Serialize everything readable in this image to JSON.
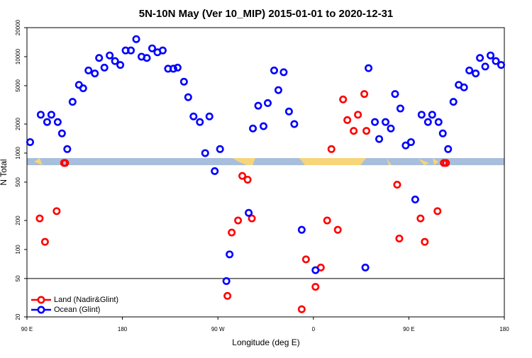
{
  "chart_data": {
    "type": "scatter",
    "title": "5N-10N May (Ver 10_MIP)   2015-01-01 to 2020-12-31",
    "x_label": "Longitude (deg E)",
    "y_label": "N Total",
    "log_y": true,
    "legend": "lower left",
    "hline": 50,
    "xlim": [
      90,
      540
    ],
    "xticks": [
      {
        "value": 90,
        "label": "90 E"
      },
      180,
      {
        "value": 270,
        "label": "90 W"
      },
      {
        "value": 360,
        "label": "0"
      },
      {
        "value": 450,
        "label": "90 E"
      },
      {
        "value": 540,
        "label": "180"
      }
    ],
    "ylim": [
      20,
      20000
    ],
    "yticks": [
      20,
      50,
      100,
      200,
      500,
      1000,
      2000,
      5000,
      10000,
      20000
    ],
    "series": [
      {
        "name": "Land (Nadir&Glint)",
        "color": "#ff0000",
        "x": [
          102,
          107,
          118,
          125,
          126,
          279,
          283,
          289,
          293,
          298,
          302,
          349,
          353,
          362,
          367,
          373,
          377,
          383,
          388,
          392,
          398,
          402,
          408,
          410,
          439,
          441,
          461,
          465,
          477,
          483,
          485
        ],
        "values": [
          210,
          120,
          250,
          790,
          790,
          33,
          150,
          200,
          580,
          530,
          210,
          24,
          79,
          41,
          65,
          200,
          1100,
          160,
          3600,
          2200,
          1700,
          2500,
          4100,
          1700,
          470,
          130,
          210,
          120,
          250,
          790,
          790
        ]
      },
      {
        "name": "Ocean (Glint)",
        "color": "#0000ff",
        "x": [
          93,
          103,
          109,
          113,
          119,
          123,
          128,
          133,
          139,
          143,
          148,
          154,
          158,
          163,
          168,
          173,
          178,
          183,
          188,
          193,
          198,
          203,
          208,
          213,
          218,
          223,
          228,
          232,
          238,
          242,
          247,
          253,
          258,
          262,
          267,
          272,
          278,
          281,
          299,
          303,
          308,
          313,
          317,
          323,
          327,
          332,
          337,
          342,
          349,
          362,
          409,
          412,
          418,
          422,
          428,
          433,
          437,
          442,
          447,
          452,
          456,
          462,
          468,
          472,
          478,
          482,
          487,
          492,
          497,
          502,
          507,
          513,
          517,
          522,
          527,
          532,
          537
        ],
        "values": [
          1300,
          2500,
          2100,
          2500,
          2100,
          1600,
          1100,
          3400,
          5100,
          4700,
          7200,
          6700,
          9700,
          7700,
          10300,
          9000,
          8200,
          11600,
          11600,
          15200,
          10000,
          9700,
          12200,
          11100,
          11600,
          7500,
          7500,
          7700,
          5500,
          3800,
          2400,
          2100,
          1000,
          2400,
          650,
          1100,
          47,
          89,
          240,
          1800,
          3100,
          1900,
          3300,
          7200,
          4500,
          6900,
          2700,
          2000,
          160,
          61,
          65,
          7600,
          2100,
          1400,
          2100,
          1800,
          4100,
          2900,
          1200,
          1300,
          330,
          2500,
          2100,
          2500,
          2100,
          1600,
          1100,
          3400,
          5100,
          4800,
          7200,
          6700,
          9700,
          7900,
          10300,
          9000,
          8200
        ]
      }
    ]
  }
}
